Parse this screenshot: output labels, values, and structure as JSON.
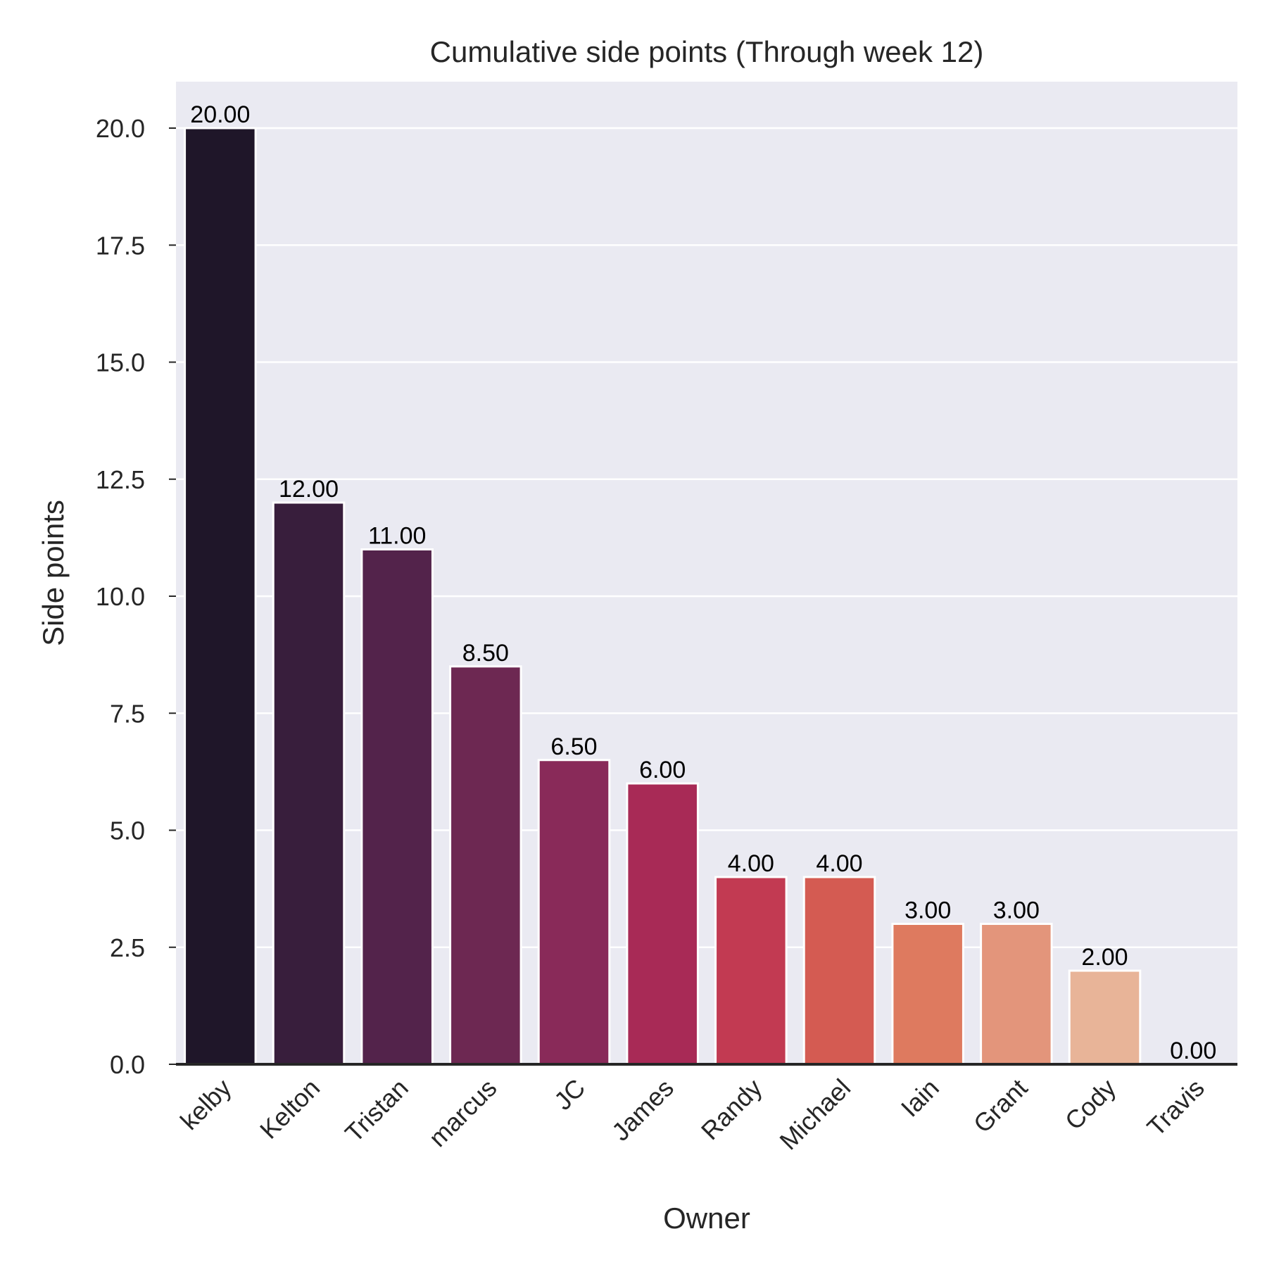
{
  "chart_data": {
    "type": "bar",
    "title": "Cumulative side points (Through week 12)",
    "xlabel": "Owner",
    "ylabel": "Side points",
    "categories": [
      "kelby",
      "Kelton",
      "Tristan",
      "marcus",
      "JC",
      "James",
      "Randy",
      "Michael",
      "Iain",
      "Grant",
      "Cody",
      "Travis"
    ],
    "values": [
      20.0,
      12.0,
      11.0,
      8.5,
      6.5,
      6.0,
      4.0,
      4.0,
      3.0,
      3.0,
      2.0,
      0.0
    ],
    "data_labels": [
      "20.00",
      "12.00",
      "11.00",
      "8.50",
      "6.50",
      "6.00",
      "4.00",
      "4.00",
      "3.00",
      "3.00",
      "2.00",
      "0.00"
    ],
    "colors": [
      "#1f1629",
      "#381e3c",
      "#53234b",
      "#6d2852",
      "#892a59",
      "#a82a56",
      "#c23a52",
      "#d45b52",
      "#de7a5f",
      "#e3957b",
      "#e8b498",
      "#f0d0b8"
    ],
    "yticks": [
      "0.0",
      "2.5",
      "5.0",
      "7.5",
      "10.0",
      "12.5",
      "15.0",
      "17.5",
      "20.0"
    ],
    "ylim": [
      0,
      21
    ],
    "grid": true,
    "x_tick_rotation": 45,
    "background": "#eaeaf2"
  }
}
